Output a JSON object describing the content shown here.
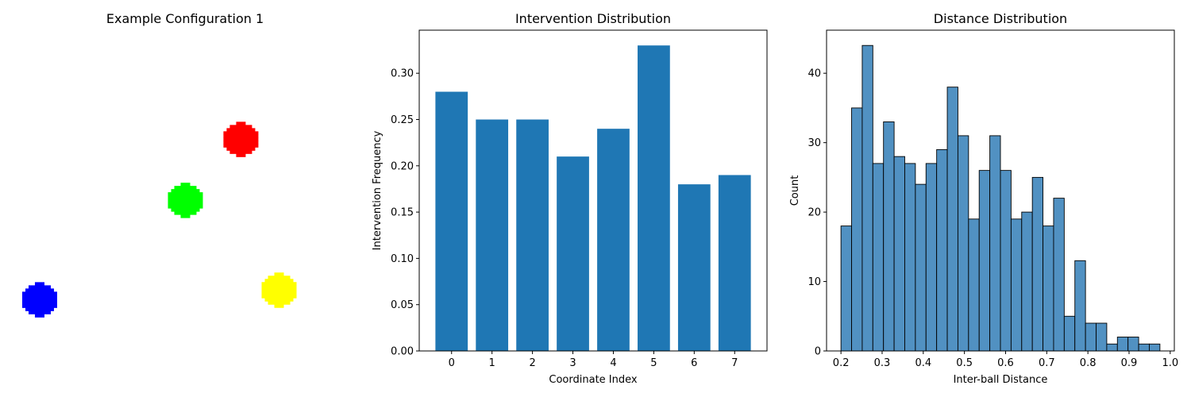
{
  "chart_data": [
    {
      "type": "scatter",
      "title": "Example Configuration 1",
      "axes": "off",
      "x_range": [
        0,
        1
      ],
      "y_range": [
        0,
        1
      ],
      "points": [
        {
          "color_name": "red",
          "color": "#ff0000",
          "x": 0.66,
          "y": 0.66
        },
        {
          "color_name": "green",
          "color": "#00ff00",
          "x": 0.5,
          "y": 0.47
        },
        {
          "color_name": "blue",
          "color": "#0000ff",
          "x": 0.08,
          "y": 0.16
        },
        {
          "color_name": "yellow",
          "color": "#ffff00",
          "x": 0.77,
          "y": 0.19
        }
      ]
    },
    {
      "type": "bar",
      "title": "Intervention Distribution",
      "xlabel": "Coordinate Index",
      "ylabel": "Intervention Frequency",
      "categories": [
        "0",
        "1",
        "2",
        "3",
        "4",
        "5",
        "6",
        "7"
      ],
      "values": [
        0.28,
        0.25,
        0.25,
        0.21,
        0.24,
        0.33,
        0.18,
        0.19
      ],
      "ylim": [
        0,
        0.3465
      ],
      "yticks": [
        "0.00",
        "0.05",
        "0.10",
        "0.15",
        "0.20",
        "0.25",
        "0.30"
      ],
      "bar_color": "#1f77b4",
      "grid": false
    },
    {
      "type": "bar",
      "subtype": "histogram",
      "title": "Distance Distribution",
      "xlabel": "Inter-ball Distance",
      "ylabel": "Count",
      "bin_start": 0.2,
      "bin_end": 0.975,
      "counts": [
        18,
        35,
        44,
        27,
        33,
        28,
        27,
        24,
        27,
        29,
        38,
        31,
        19,
        26,
        31,
        26,
        19,
        20,
        25,
        18,
        22,
        5,
        13,
        4,
        4,
        1,
        2,
        2,
        1,
        1
      ],
      "xlim": [
        0.165,
        1.01
      ],
      "ylim": [
        0,
        46.2
      ],
      "xticks": [
        "0.2",
        "0.3",
        "0.4",
        "0.5",
        "0.6",
        "0.7",
        "0.8",
        "0.9",
        "1.0"
      ],
      "yticks": [
        "0",
        "10",
        "20",
        "30",
        "40"
      ],
      "bar_color": "#5191c2",
      "edge_color": "#000000",
      "grid": false
    }
  ]
}
